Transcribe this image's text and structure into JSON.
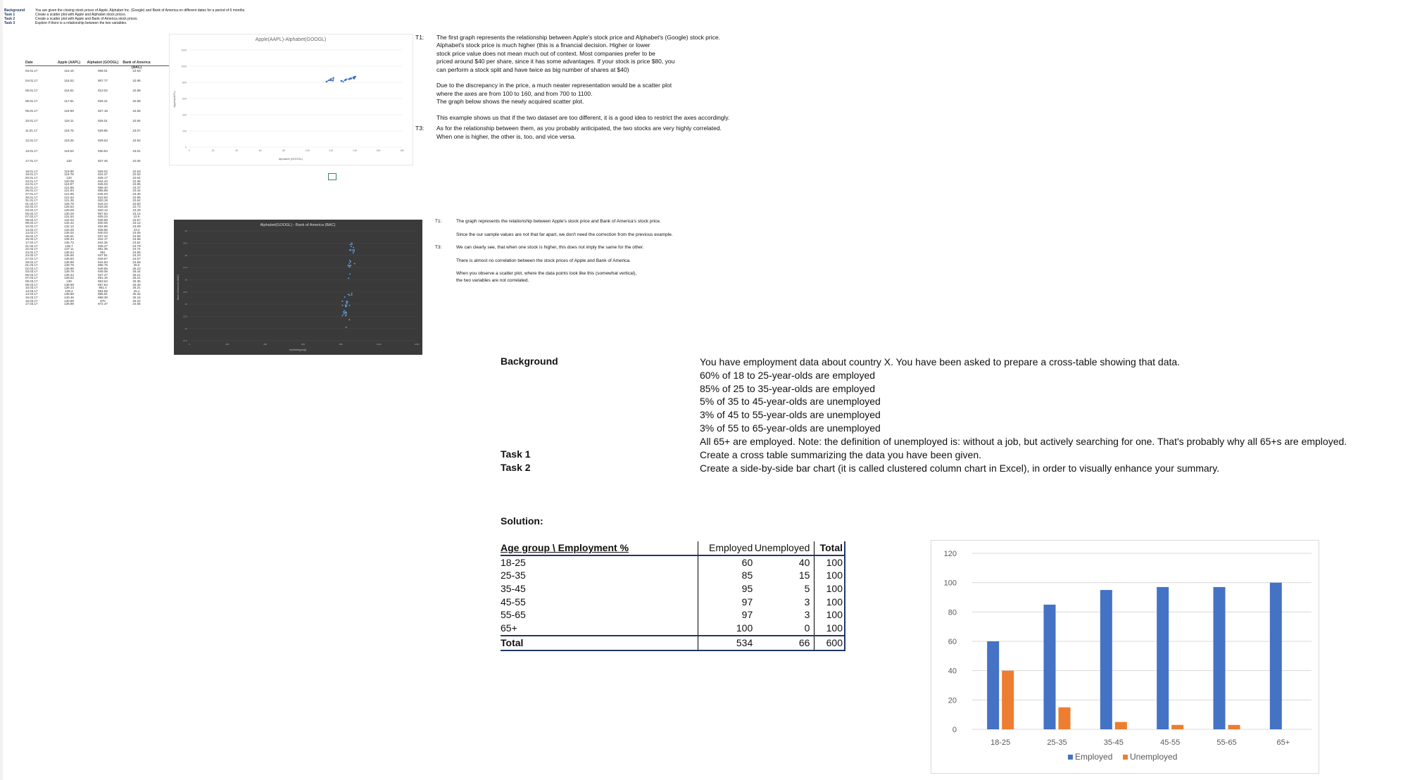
{
  "top_left": {
    "rows": [
      {
        "label": "Background",
        "text": "You are given the closing stock prices of Apple, Alphabet Inc. (Google) and Bank of America on different dates for a period of 6 months."
      },
      {
        "label": "Task 1",
        "text": "Create a scatter plot with Apple and Alphabet stock prices."
      },
      {
        "label": "Task 2",
        "text": "Create a scatter plot with Apple and Bank of America stock prices."
      },
      {
        "label": "Task 3",
        "text": "Explore if there is a relationship between the two variables."
      }
    ]
  },
  "stock_table": {
    "headers": [
      "Date",
      "Apple (AAPL)",
      "Alphabet (GOOGL)",
      "Bank of America (BAC)"
    ],
    "rows_sparse": [
      [
        "03.01.17",
        "116.15",
        "808.01",
        "22.53"
      ],
      [
        "04.01.17",
        "116.02",
        "807.77",
        "22.95"
      ],
      [
        "05.01.17",
        "116.61",
        "813.02",
        "22.68"
      ],
      [
        "06.01.17",
        "117.91",
        "825.21",
        "22.68"
      ],
      [
        "09.01.17",
        "118.99",
        "827.18",
        "22.55"
      ],
      [
        "10.01.17",
        "119.11",
        "826.01",
        "22.94"
      ],
      [
        "11.01.17",
        "119.75",
        "829.86",
        "23.07"
      ],
      [
        "12.01.17",
        "119.25",
        "829.53",
        "22.92"
      ],
      [
        "13.01.17",
        "119.04",
        "830.94",
        "23.01"
      ],
      [
        "17.01.17",
        "120",
        "827.46",
        "22.05"
      ]
    ],
    "rows_dense": [
      [
        "18.01.17",
        "119.99",
        "829.02",
        "22.63"
      ],
      [
        "19.01.17",
        "119.78",
        "824.37",
        "22.53"
      ],
      [
        "20.01.17",
        "120",
        "828.17",
        "22.64"
      ],
      [
        "23.01.17",
        "120.08",
        "844.43",
        "22.36"
      ],
      [
        "24.01.17",
        "119.97",
        "845.03",
        "22.95"
      ],
      [
        "25.01.17",
        "121.88",
        "856.40",
        "23.37"
      ],
      [
        "26.01.17",
        "121.94",
        "856.98",
        "23.44"
      ],
      [
        "27.01.17",
        "121.95",
        "845.03",
        "23.36"
      ],
      [
        "30.01.17",
        "121.63",
        "823.83",
        "22.96"
      ],
      [
        "31.01.17",
        "121.35",
        "820.19",
        "22.64"
      ],
      [
        "01.02.17",
        "128.75",
        "815.24",
        "22.60"
      ],
      [
        "02.02.17",
        "128.53",
        "818.26",
        "22.73"
      ],
      [
        "03.02.17",
        "129.08",
        "820.13",
        "23.29"
      ],
      [
        "06.02.17",
        "130.29",
        "807.64",
        "23.12"
      ],
      [
        "07.02.17",
        "131.53",
        "825.23",
        "22.9"
      ],
      [
        "08.02.17",
        "132.04",
        "825.88",
        "22.67"
      ],
      [
        "09.02.17",
        "132.42",
        "830.06",
        "23.12"
      ],
      [
        "10.02.17",
        "132.12",
        "834.85",
        "23.09"
      ],
      [
        "13.02.17",
        "133.29",
        "838.96",
        "23.4"
      ],
      [
        "14.02.17",
        "135.02",
        "840.03",
        "24.06"
      ],
      [
        "15.02.17",
        "135.51",
        "837.32",
        "24.59"
      ],
      [
        "16.02.17",
        "135.34",
        "842.17",
        "24.58"
      ],
      [
        "17.02.17",
        "135.72",
        "844.35",
        "24.52"
      ],
      [
        "21.02.17",
        "136.7",
        "846.27",
        "24.79"
      ],
      [
        "22.02.17",
        "137.11",
        "851.36",
        "24.74"
      ],
      [
        "23.02.17",
        "136.53",
        "851",
        "24.59"
      ],
      [
        "24.02.17",
        "136.66",
        "847.81",
        "24.23"
      ],
      [
        "27.02.17",
        "136.93",
        "849.67",
        "24.57"
      ],
      [
        "28.02.17",
        "136.99",
        "844.93",
        "24.68"
      ],
      [
        "01.03.17",
        "139.79",
        "856.75",
        "25.5"
      ],
      [
        "02.03.17",
        "138.96",
        "849.85",
        "25.23"
      ],
      [
        "03.03.17",
        "139.78",
        "849.08",
        "25.44"
      ],
      [
        "06.03.17",
        "139.34",
        "847.27",
        "25.21"
      ],
      [
        "07.03.17",
        "139.52",
        "851.15",
        "25.21"
      ],
      [
        "08.03.17",
        "139",
        "853.64",
        "25.36"
      ],
      [
        "09.03.17",
        "138.68",
        "857.84",
        "25.45"
      ],
      [
        "10.03.17",
        "139.14",
        "861.4",
        "25.21"
      ],
      [
        "13.03.17",
        "139.2",
        "864.58",
        "25.1"
      ],
      [
        "14.03.17",
        "138.99",
        "865.91",
        "25.32"
      ],
      [
        "15.03.17",
        "140.46",
        "868.39",
        "25.16"
      ],
      [
        "16.03.17",
        "140.69",
        "870",
        "25.22"
      ],
      [
        "17.03.17",
        "139.99",
        "872.37",
        "24.66"
      ]
    ]
  },
  "chart1": {
    "title": "Apple(AAPL)-Alphabet(GOOGL)",
    "ylabel": "Apple(AAPL)",
    "legend": "Alphabet (GOOGL)",
    "y_ticks": [
      "1200",
      "1000",
      "800",
      "600",
      "400",
      "200",
      "0"
    ],
    "x_ticks": [
      "0",
      "20",
      "40",
      "60",
      "80",
      "100",
      "120",
      "140",
      "160",
      "180"
    ]
  },
  "chart2": {
    "title": "Alphabet(GOOGL) - Bank of America (BAC)",
    "xlabel": "Alphabet(googl)",
    "ylabel": "Bank of America (BAC)",
    "y_ticks": [
      "26",
      "25.5",
      "25",
      "24.5",
      "24",
      "23.5",
      "23",
      "22.5",
      "22",
      "21.5"
    ],
    "x_ticks": [
      "0",
      "200",
      "400",
      "600",
      "800",
      "1000",
      "1200"
    ]
  },
  "notes1": {
    "t1_label": "T1:",
    "t1_lines": [
      "The first graph represents the relationship between Apple's stock price and Alphabet's (Google) stock price.",
      "Alphabet's stock price is much higher (this is a financial decision. Higher or lower",
      "stock price value does not mean much out of context. Most companies prefer to be",
      "priced around $40 per share, since it has some advantages. If your stock is price $80, you",
      "can perform a stock split and have twice as big number of shares at $40)",
      "",
      "Due to the discrepancy in the price, a much neater representation would be a scatter plot",
      "where the axes are from 100 to 160, and from 700 to 1100.",
      "The graph below shows the newly acquired scatter plot.",
      "",
      "This example shows us that if the two dataset are too different, it is a good idea to restrict the axes accordingly."
    ],
    "t3_label": "T3:",
    "t3_lines": [
      "As for the relationship between them, as you probably anticipated, the two stocks are very highly correlated.",
      "When one is higher, the other is, too, and vice versa."
    ]
  },
  "notes2": {
    "t1_label": "T1:",
    "t1_line": "The graph represents the relationship between Apple's stock price and Bank of America's stock price.",
    "t1_line2": "Since the our sample values are not that far apart, we don't need the correction from the previous example.",
    "t3_label": "T3:",
    "t3_lines": [
      "We can clearly see, that when one stock is higher, this does not imply the same for the other.",
      "There is almost no correlation between the stock prices of Apple and Bank of America.",
      "When you observe a scatter plot, where the data points look like this (somewhat vertical),",
      "the two variables are not correlated."
    ]
  },
  "employment": {
    "background_label": "Background",
    "background_lines": [
      "You have employment data about country X. You have been asked to prepare a cross-table showing that data.",
      "60% of 18 to 25-year-olds are employed",
      "85% of 25 to 35-year-olds are employed",
      "5% of 35 to 45-year-olds are unemployed",
      "3% of 45 to 55-year-olds are unemployed",
      "3% of 55 to 65-year-olds are unemployed",
      "All 65+ are employed. Note: the definition of unemployed is: without a job, but actively searching for one. That's probably why all 65+s are employed."
    ],
    "task1_label": "Task 1",
    "task1_text": "Create a cross table summarizing the data you have been given.",
    "task2_label": "Task 2",
    "task2_text": "Create a side-by-side bar chart (it is called clustered column chart in Excel), in order to visually enhance your summary.",
    "solution_label": "Solution:",
    "table": {
      "headers": [
        "Age group \\ Employment %",
        "Employed",
        "Unemployed",
        "Total"
      ],
      "rows": [
        [
          "18-25",
          "60",
          "40",
          "100"
        ],
        [
          "25-35",
          "85",
          "15",
          "100"
        ],
        [
          "35-45",
          "95",
          "5",
          "100"
        ],
        [
          "45-55",
          "97",
          "3",
          "100"
        ],
        [
          "55-65",
          "97",
          "3",
          "100"
        ],
        [
          "65+",
          "100",
          "0",
          "100"
        ]
      ],
      "total": [
        "Total",
        "534",
        "66",
        "600"
      ]
    }
  },
  "chart_data": {
    "type": "bar",
    "categories": [
      "18-25",
      "25-35",
      "35-45",
      "45-55",
      "55-65",
      "65+"
    ],
    "series": [
      {
        "name": "Employed",
        "values": [
          60,
          85,
          95,
          97,
          97,
          100
        ],
        "color": "#4472c4"
      },
      {
        "name": "Unemployed",
        "values": [
          40,
          15,
          5,
          3,
          3,
          0
        ],
        "color": "#ed7d31"
      }
    ],
    "ylim": [
      0,
      120
    ],
    "y_ticks": [
      "0",
      "20",
      "40",
      "60",
      "80",
      "100",
      "120"
    ],
    "legend": "bottom",
    "grid": true
  }
}
